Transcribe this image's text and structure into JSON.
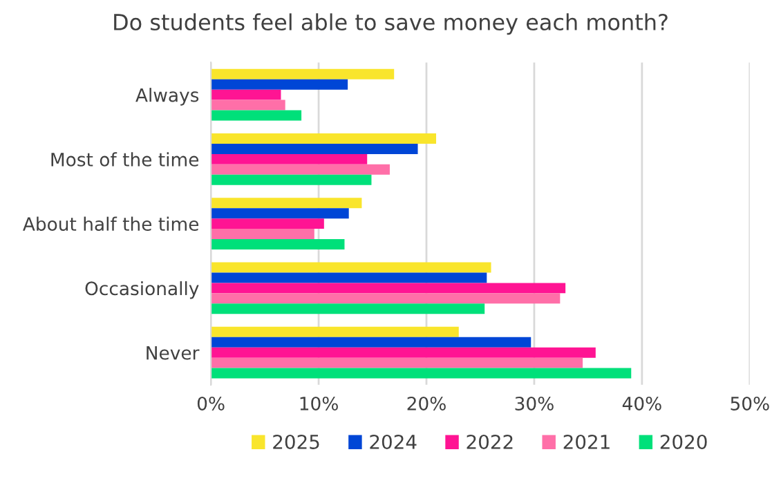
{
  "chart_data": {
    "type": "bar",
    "orientation": "horizontal",
    "title": "Do students feel able to save money each month?",
    "categories": [
      "Always",
      "Most of the time",
      "About half the time",
      "Occasionally",
      "Never"
    ],
    "series": [
      {
        "name": "2025",
        "color": "#f9e52c",
        "values": [
          17.0,
          20.9,
          14.0,
          26.0,
          23.0
        ]
      },
      {
        "name": "2024",
        "color": "#0046d6",
        "values": [
          12.7,
          19.2,
          12.8,
          25.6,
          29.7
        ]
      },
      {
        "name": "2022",
        "color": "#ff1493",
        "values": [
          6.5,
          14.5,
          10.5,
          32.9,
          35.7
        ]
      },
      {
        "name": "2021",
        "color": "#ff6fa8",
        "values": [
          6.9,
          16.6,
          9.6,
          32.4,
          34.5
        ]
      },
      {
        "name": "2020",
        "color": "#00e07a",
        "values": [
          8.4,
          14.9,
          12.4,
          25.4,
          39.0
        ]
      }
    ],
    "xlim": [
      0,
      50
    ],
    "xticks": [
      {
        "value": 0,
        "label": "0%"
      },
      {
        "value": 10,
        "label": "10%"
      },
      {
        "value": 20,
        "label": "20%"
      },
      {
        "value": 30,
        "label": "30%"
      },
      {
        "value": 40,
        "label": "40%"
      },
      {
        "value": 50,
        "label": "50%"
      }
    ],
    "grid": "x",
    "legend": "bottom"
  }
}
